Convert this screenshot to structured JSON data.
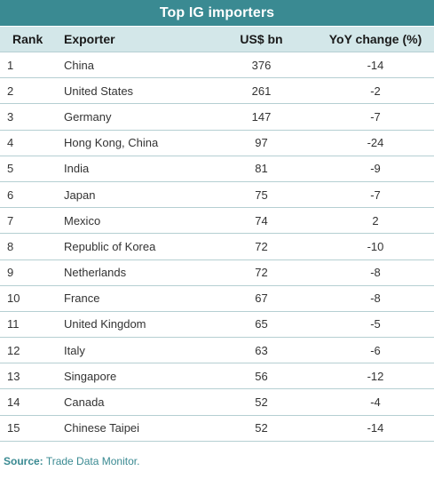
{
  "title": "Top IG importers",
  "columns": [
    "Rank",
    "Exporter",
    "US$ bn",
    "YoY change (%)"
  ],
  "rows": [
    {
      "rank": "1",
      "exporter": "China",
      "usd_bn": "376",
      "yoy": "-14"
    },
    {
      "rank": "2",
      "exporter": "United States",
      "usd_bn": "261",
      "yoy": "-2"
    },
    {
      "rank": "3",
      "exporter": "Germany",
      "usd_bn": "147",
      "yoy": "-7"
    },
    {
      "rank": "4",
      "exporter": "Hong Kong, China",
      "usd_bn": "97",
      "yoy": "-24"
    },
    {
      "rank": "5",
      "exporter": "India",
      "usd_bn": "81",
      "yoy": "-9"
    },
    {
      "rank": "6",
      "exporter": "Japan",
      "usd_bn": "75",
      "yoy": "-7"
    },
    {
      "rank": "7",
      "exporter": "Mexico",
      "usd_bn": "74",
      "yoy": "2"
    },
    {
      "rank": "8",
      "exporter": "Republic of Korea",
      "usd_bn": "72",
      "yoy": "-10"
    },
    {
      "rank": "9",
      "exporter": "Netherlands",
      "usd_bn": "72",
      "yoy": "-8"
    },
    {
      "rank": "10",
      "exporter": "France",
      "usd_bn": "67",
      "yoy": "-8"
    },
    {
      "rank": "11",
      "exporter": "United Kingdom",
      "usd_bn": "65",
      "yoy": "-5"
    },
    {
      "rank": "12",
      "exporter": "Italy",
      "usd_bn": "63",
      "yoy": "-6"
    },
    {
      "rank": "13",
      "exporter": "Singapore",
      "usd_bn": "56",
      "yoy": "-12"
    },
    {
      "rank": "14",
      "exporter": "Canada",
      "usd_bn": "52",
      "yoy": "-4"
    },
    {
      "rank": "15",
      "exporter": "Chinese Taipei",
      "usd_bn": "52",
      "yoy": "-14"
    }
  ],
  "source": {
    "label": "Source:",
    "text": "Trade Data Monitor."
  },
  "colors": {
    "title_bg": "#3a8a92",
    "header_bg": "#d3e7e9",
    "rule": "#b5cfd2",
    "source_text": "#3a8a92"
  }
}
